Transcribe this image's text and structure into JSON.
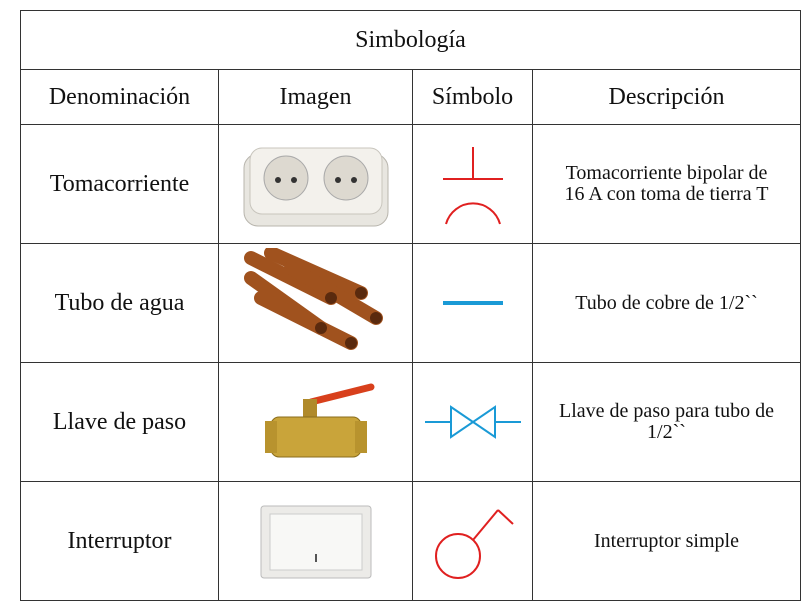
{
  "table": {
    "title": "Simbología",
    "headers": [
      "Denominación",
      "Imagen",
      "Símbolo",
      "Descripción"
    ],
    "rows": [
      [
        "Tomacorriente",
        "Tomacorriente bipolar de 16 A con toma de tierra T"
      ],
      [
        "Tubo de agua",
        "Tubo de cobre de 1/2``"
      ],
      [
        "Llave de paso",
        "Llave de paso para tubo de 1/2``"
      ],
      [
        "Interruptor",
        "Interruptor simple"
      ]
    ]
  }
}
